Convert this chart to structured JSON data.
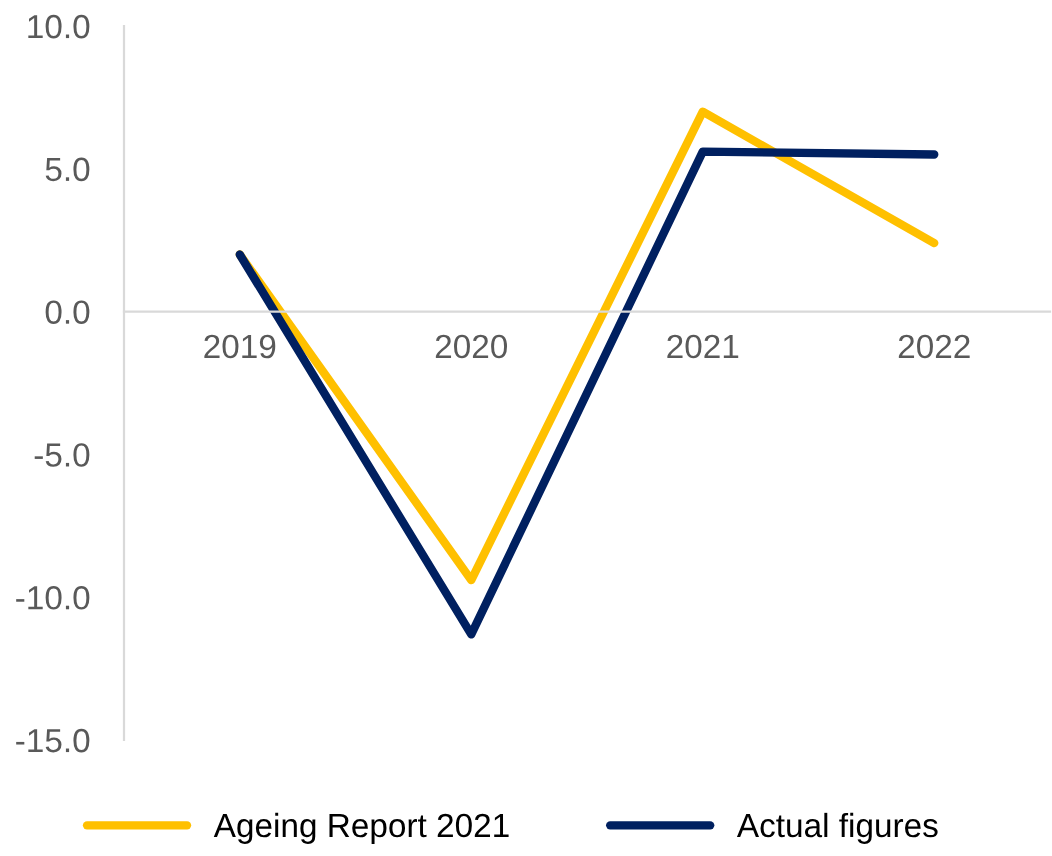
{
  "chart_data": {
    "type": "line",
    "categories": [
      "2019",
      "2020",
      "2021",
      "2022"
    ],
    "series": [
      {
        "name": "Ageing Report 2021",
        "color": "#ffc000",
        "values": [
          2.0,
          -9.4,
          7.0,
          2.4
        ]
      },
      {
        "name": "Actual figures",
        "color": "#002060",
        "values": [
          2.0,
          -11.3,
          5.6,
          5.5
        ]
      }
    ],
    "ylim": [
      -15,
      10
    ],
    "yticks": [
      {
        "value": -15,
        "label": "-15.0"
      },
      {
        "value": -10,
        "label": "-10.0"
      },
      {
        "value": -5,
        "label": "-5.0"
      },
      {
        "value": 0,
        "label": "0.0"
      },
      {
        "value": 5,
        "label": "5.0"
      },
      {
        "value": 10,
        "label": "10.0"
      }
    ],
    "grid": false,
    "legend": "bottom",
    "marker": "none",
    "line_style": "solid"
  }
}
